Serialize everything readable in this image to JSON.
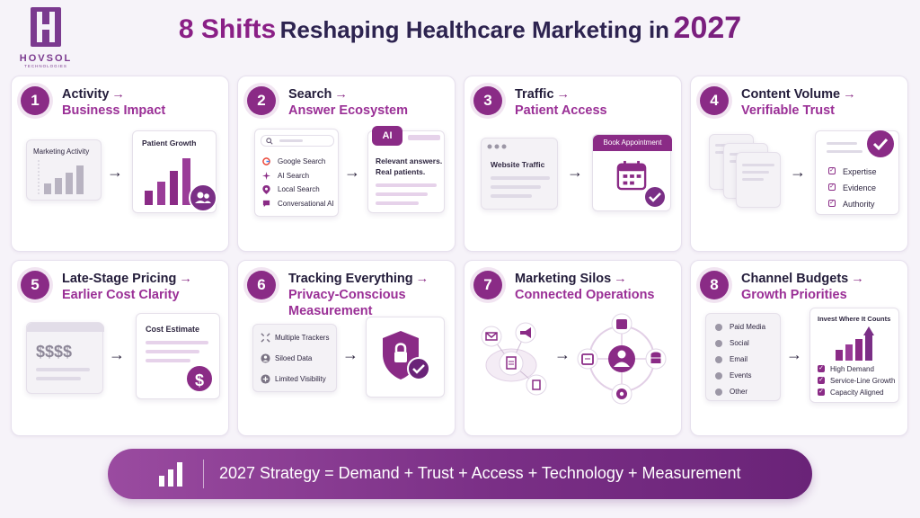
{
  "brand": {
    "name": "HOVSOL",
    "sub": "TECHNOLOGIES"
  },
  "title": {
    "lead": "8 Shifts",
    "middle": "Reshaping Healthcare Marketing in",
    "year": "2027"
  },
  "arrow_glyph": "→",
  "flow_glyph": "→",
  "shifts": [
    {
      "number": "1",
      "from": "Activity",
      "to": "Business Impact",
      "left_label": "Marketing Activity",
      "right_label": "Patient Growth",
      "icons": [
        "bar-chart-icon",
        "users-icon"
      ]
    },
    {
      "number": "2",
      "from": "Search",
      "to": "Answer Ecosystem",
      "search_items": [
        "Google Search",
        "AI Search",
        "Local Search",
        "Conversational AI"
      ],
      "ai_badge": "AI",
      "answer_line1": "Relevant answers.",
      "answer_line2": "Real patients.",
      "icons": [
        "search-icon",
        "google-icon",
        "sparkle-icon",
        "location-icon",
        "chat-icon"
      ]
    },
    {
      "number": "3",
      "from": "Traffic",
      "to": "Patient Access",
      "left_label": "Website Traffic",
      "right_label": "Book Appointment",
      "icons": [
        "browser-icon",
        "calendar-icon",
        "check-icon"
      ]
    },
    {
      "number": "4",
      "from": "Content Volume",
      "to": "Verifiable Trust",
      "checklist": [
        "Expertise",
        "Evidence",
        "Authority"
      ],
      "icons": [
        "documents-icon",
        "check-icon"
      ]
    },
    {
      "number": "5",
      "from": "Late-Stage Pricing",
      "to": "Earlier Cost Clarity",
      "price_symbol": "$$$$",
      "right_label": "Cost Estimate",
      "dollar": "$",
      "icons": [
        "dollar-icon"
      ]
    },
    {
      "number": "6",
      "from": "Tracking Everything",
      "to": "Privacy-Conscious Measurement",
      "items": [
        "Multiple Trackers",
        "Siloed Data",
        "Limited Visibility"
      ],
      "icons": [
        "trackers-icon",
        "siloed-data-icon",
        "visibility-icon",
        "shield-lock-icon"
      ]
    },
    {
      "number": "7",
      "from": "Marketing Silos",
      "to": "Connected Operations",
      "icons": [
        "mail-icon",
        "megaphone-icon",
        "document-icon",
        "calendar-icon",
        "user-icon",
        "database-icon",
        "settings-icon"
      ]
    },
    {
      "number": "8",
      "from": "Channel Budgets",
      "to": "Growth Priorities",
      "channels": [
        "Paid Media",
        "Social",
        "Email",
        "Events",
        "Other"
      ],
      "right_label": "Invest Where It Counts",
      "priorities": [
        "High Demand",
        "Service-Line Growth",
        "Capacity Aligned"
      ],
      "icons": [
        "growth-chart-icon"
      ]
    }
  ],
  "banner": {
    "text": "2027 Strategy = Demand + Trust + Access + Technology + Measurement",
    "icon": "bar-chart-icon"
  },
  "colors": {
    "accent": "#8a2b86",
    "accent_light": "#9a2f96",
    "title_dark": "#2d2350",
    "banner": "#7a2f86"
  }
}
